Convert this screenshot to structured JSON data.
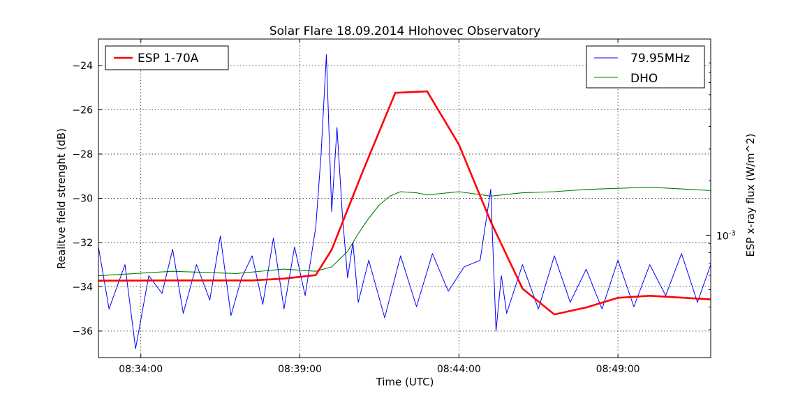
{
  "chart_data": {
    "type": "line",
    "title": "Solar Flare 18.09.2014 Hlohovec Observatory",
    "xlabel": "Time (UTC)",
    "ylabel": "Realitve field strenght (dB)",
    "y2label": "ESP x-ray flux (W/m^2)",
    "xlim": [
      "08:32:40",
      "08:51:55"
    ],
    "ylim": [
      -37.2,
      -22.8
    ],
    "x_ticks": [
      "08:34:00",
      "08:39:00",
      "08:44:00",
      "08:49:00"
    ],
    "y_ticks": [
      -24,
      -26,
      -28,
      -30,
      -32,
      -34,
      -36
    ],
    "y2_tick": {
      "label_base": "10",
      "label_exp": "-3",
      "value": 0.001
    },
    "y2_scale": "log",
    "grid": true,
    "legends": [
      {
        "placement": "top-left",
        "entries": [
          "ESP 1-70A"
        ]
      },
      {
        "placement": "top-right",
        "entries": [
          "79.95MHz",
          "DHO"
        ]
      }
    ],
    "series": [
      {
        "name": "ESP 1-70A",
        "color": "#ff0000",
        "axis": "right",
        "unit": "W/m^2",
        "x": [
          "08:32:40",
          "08:35:00",
          "08:37:30",
          "08:38:30",
          "08:39:30",
          "08:40:00",
          "08:41:00",
          "08:42:00",
          "08:43:00",
          "08:44:00",
          "08:45:00",
          "08:46:00",
          "08:47:00",
          "08:48:00",
          "08:49:00",
          "08:50:00",
          "08:51:55"
        ],
        "y": [
          0.00056,
          0.000562,
          0.000562,
          0.000575,
          0.000601,
          0.000831,
          0.00231,
          0.00614,
          0.00626,
          0.00318,
          0.00119,
          0.000506,
          0.000364,
          0.000398,
          0.00045,
          0.000462,
          0.000441
        ]
      },
      {
        "name": "79.95MHz",
        "color": "#0000ff",
        "axis": "left",
        "unit": "dB",
        "x": [
          "08:32:40",
          "08:33:00",
          "08:33:30",
          "08:33:50",
          "08:34:15",
          "08:34:40",
          "08:35:00",
          "08:35:20",
          "08:35:45",
          "08:36:10",
          "08:36:30",
          "08:36:50",
          "08:37:10",
          "08:37:30",
          "08:37:50",
          "08:38:10",
          "08:38:30",
          "08:38:50",
          "08:39:10",
          "08:39:30",
          "08:39:40",
          "08:39:50",
          "08:40:00",
          "08:40:10",
          "08:40:20",
          "08:40:30",
          "08:40:40",
          "08:40:50",
          "08:41:10",
          "08:41:40",
          "08:42:10",
          "08:42:40",
          "08:43:10",
          "08:43:40",
          "08:44:10",
          "08:44:40",
          "08:45:00",
          "08:45:10",
          "08:45:20",
          "08:45:30",
          "08:46:00",
          "08:46:30",
          "08:47:00",
          "08:47:30",
          "08:48:00",
          "08:48:30",
          "08:49:00",
          "08:49:30",
          "08:50:00",
          "08:50:30",
          "08:51:00",
          "08:51:30",
          "08:51:55"
        ],
        "y": [
          -32.2,
          -35.0,
          -33.0,
          -36.8,
          -33.5,
          -34.3,
          -32.3,
          -35.2,
          -33.0,
          -34.6,
          -31.7,
          -35.3,
          -33.6,
          -32.6,
          -34.8,
          -31.8,
          -35.0,
          -32.2,
          -34.4,
          -31.3,
          -28.0,
          -23.5,
          -30.6,
          -26.8,
          -30.7,
          -33.6,
          -32.0,
          -34.7,
          -32.8,
          -35.4,
          -32.6,
          -34.9,
          -32.5,
          -34.2,
          -33.1,
          -32.8,
          -29.6,
          -36.0,
          -33.5,
          -35.2,
          -33.0,
          -35.0,
          -32.6,
          -34.7,
          -33.2,
          -35.0,
          -32.8,
          -34.9,
          -33.0,
          -34.4,
          -32.5,
          -34.7,
          -33.0
        ]
      },
      {
        "name": "DHO",
        "color": "#008000",
        "axis": "left",
        "unit": "dB",
        "x": [
          "08:32:40",
          "08:35:00",
          "08:37:00",
          "08:38:30",
          "08:39:30",
          "08:40:00",
          "08:40:30",
          "08:40:50",
          "08:41:10",
          "08:41:30",
          "08:41:50",
          "08:42:10",
          "08:42:40",
          "08:43:00",
          "08:44:00",
          "08:45:00",
          "08:46:00",
          "08:47:00",
          "08:48:00",
          "08:49:00",
          "08:50:00",
          "08:51:55"
        ],
        "y": [
          -33.5,
          -33.3,
          -33.4,
          -33.2,
          -33.3,
          -33.1,
          -32.4,
          -31.6,
          -30.9,
          -30.3,
          -29.9,
          -29.7,
          -29.75,
          -29.85,
          -29.7,
          -29.9,
          -29.75,
          -29.7,
          -29.6,
          -29.55,
          -29.5,
          -29.65
        ]
      }
    ]
  }
}
